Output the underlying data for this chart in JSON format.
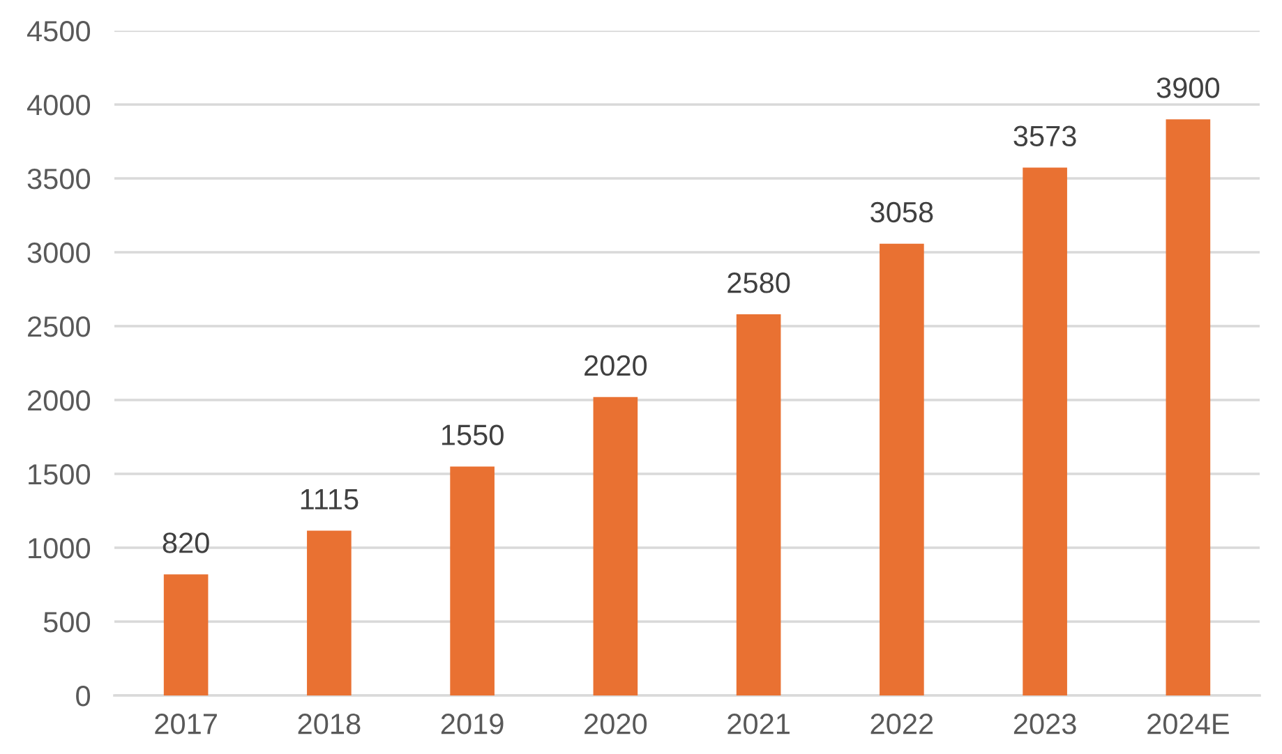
{
  "chart_data": {
    "type": "bar",
    "categories": [
      "2017",
      "2018",
      "2019",
      "2020",
      "2021",
      "2022",
      "2023",
      "2024E"
    ],
    "values": [
      820,
      1115,
      1550,
      2020,
      2580,
      3058,
      3573,
      3900
    ],
    "color": "#e97132",
    "ylim": [
      0,
      4500
    ],
    "yticks": [
      0,
      500,
      1000,
      1500,
      2000,
      2500,
      3000,
      3500,
      4000,
      4500
    ],
    "grid": "y",
    "data_labels": true
  }
}
